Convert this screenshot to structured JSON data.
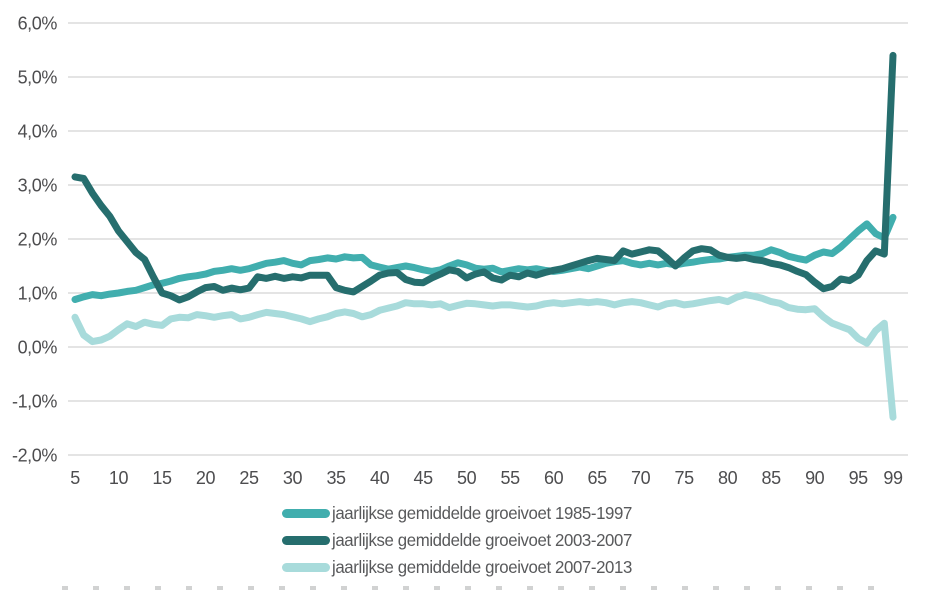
{
  "chart_data": {
    "type": "line",
    "title": "",
    "xlabel": "",
    "ylabel": "",
    "grid": true,
    "legend_position": "bottom",
    "y_range": [
      -2,
      6
    ],
    "y_tick_values": [
      6,
      5,
      4,
      3,
      2,
      1,
      0,
      -1,
      -2
    ],
    "y_tick_labels": [
      "6,0%",
      "5,0%",
      "4,0%",
      "3,0%",
      "2,0%",
      "1,0%",
      "0,0%",
      "-1,0%",
      "-2,0%"
    ],
    "x_ticks": [
      5,
      10,
      15,
      20,
      25,
      30,
      35,
      40,
      45,
      50,
      55,
      60,
      65,
      70,
      75,
      80,
      85,
      90,
      95,
      99
    ],
    "x_range": [
      5,
      99
    ],
    "x": [
      5,
      6,
      7,
      8,
      9,
      10,
      11,
      12,
      13,
      14,
      15,
      16,
      17,
      18,
      19,
      20,
      21,
      22,
      23,
      24,
      25,
      26,
      27,
      28,
      29,
      30,
      31,
      32,
      33,
      34,
      35,
      36,
      37,
      38,
      39,
      40,
      41,
      42,
      43,
      44,
      45,
      46,
      47,
      48,
      49,
      50,
      51,
      52,
      53,
      54,
      55,
      56,
      57,
      58,
      59,
      60,
      61,
      62,
      63,
      64,
      65,
      66,
      67,
      68,
      69,
      70,
      71,
      72,
      73,
      74,
      75,
      76,
      77,
      78,
      79,
      80,
      81,
      82,
      83,
      84,
      85,
      86,
      87,
      88,
      89,
      90,
      91,
      92,
      93,
      94,
      95,
      96,
      97,
      98,
      99
    ],
    "series": [
      {
        "name": "jaarlijkse gemiddelde groeivoet 1985-1997",
        "color": "#41aeae",
        "values": [
          0.88,
          0.93,
          0.97,
          0.95,
          0.98,
          1.0,
          1.03,
          1.05,
          1.1,
          1.15,
          1.18,
          1.22,
          1.27,
          1.3,
          1.32,
          1.35,
          1.4,
          1.42,
          1.45,
          1.42,
          1.45,
          1.5,
          1.55,
          1.57,
          1.6,
          1.55,
          1.52,
          1.6,
          1.62,
          1.65,
          1.63,
          1.67,
          1.65,
          1.66,
          1.52,
          1.48,
          1.44,
          1.47,
          1.5,
          1.47,
          1.43,
          1.4,
          1.43,
          1.5,
          1.56,
          1.52,
          1.46,
          1.44,
          1.46,
          1.39,
          1.42,
          1.45,
          1.43,
          1.45,
          1.42,
          1.4,
          1.42,
          1.45,
          1.48,
          1.45,
          1.5,
          1.55,
          1.58,
          1.6,
          1.55,
          1.52,
          1.55,
          1.52,
          1.55,
          1.52,
          1.55,
          1.57,
          1.6,
          1.62,
          1.63,
          1.66,
          1.68,
          1.7,
          1.7,
          1.73,
          1.8,
          1.75,
          1.68,
          1.64,
          1.61,
          1.7,
          1.76,
          1.73,
          1.85,
          2.0,
          2.15,
          2.28,
          2.1,
          2.02,
          2.4
        ]
      },
      {
        "name": "jaarlijkse gemiddelde groeivoet 2003-2007",
        "color": "#266e6e",
        "values": [
          3.15,
          3.12,
          2.85,
          2.62,
          2.42,
          2.15,
          1.95,
          1.75,
          1.62,
          1.3,
          1.0,
          0.95,
          0.87,
          0.93,
          1.02,
          1.1,
          1.12,
          1.05,
          1.09,
          1.06,
          1.09,
          1.3,
          1.27,
          1.31,
          1.27,
          1.3,
          1.28,
          1.33,
          1.33,
          1.33,
          1.1,
          1.05,
          1.02,
          1.12,
          1.22,
          1.33,
          1.37,
          1.38,
          1.25,
          1.2,
          1.19,
          1.28,
          1.35,
          1.43,
          1.4,
          1.28,
          1.35,
          1.39,
          1.28,
          1.24,
          1.33,
          1.3,
          1.37,
          1.33,
          1.38,
          1.42,
          1.45,
          1.5,
          1.55,
          1.6,
          1.64,
          1.62,
          1.6,
          1.78,
          1.72,
          1.76,
          1.8,
          1.78,
          1.65,
          1.5,
          1.65,
          1.78,
          1.82,
          1.8,
          1.7,
          1.66,
          1.64,
          1.66,
          1.62,
          1.6,
          1.55,
          1.52,
          1.47,
          1.4,
          1.34,
          1.2,
          1.08,
          1.12,
          1.26,
          1.23,
          1.33,
          1.6,
          1.78,
          1.72,
          5.4
        ]
      },
      {
        "name": "jaarlijkse gemiddelde groeivoet 2007-2013",
        "color": "#a8dbdb",
        "values": [
          0.55,
          0.22,
          0.1,
          0.13,
          0.2,
          0.32,
          0.43,
          0.38,
          0.46,
          0.42,
          0.4,
          0.52,
          0.55,
          0.54,
          0.6,
          0.58,
          0.55,
          0.58,
          0.6,
          0.52,
          0.55,
          0.6,
          0.64,
          0.62,
          0.6,
          0.56,
          0.52,
          0.47,
          0.52,
          0.56,
          0.62,
          0.65,
          0.62,
          0.56,
          0.6,
          0.68,
          0.72,
          0.76,
          0.82,
          0.8,
          0.8,
          0.78,
          0.8,
          0.73,
          0.77,
          0.81,
          0.8,
          0.78,
          0.76,
          0.78,
          0.78,
          0.76,
          0.74,
          0.76,
          0.8,
          0.82,
          0.8,
          0.82,
          0.84,
          0.82,
          0.84,
          0.82,
          0.78,
          0.82,
          0.84,
          0.82,
          0.78,
          0.74,
          0.8,
          0.82,
          0.78,
          0.8,
          0.83,
          0.86,
          0.88,
          0.84,
          0.92,
          0.97,
          0.94,
          0.9,
          0.84,
          0.81,
          0.73,
          0.7,
          0.69,
          0.71,
          0.56,
          0.44,
          0.38,
          0.32,
          0.16,
          0.07,
          0.3,
          0.44,
          -1.3
        ]
      }
    ]
  },
  "colors": {
    "axis_text": "#4d4d4f",
    "grid_line": "#d4d4d4",
    "legend_text": "#58595b",
    "background": "#ffffff"
  }
}
